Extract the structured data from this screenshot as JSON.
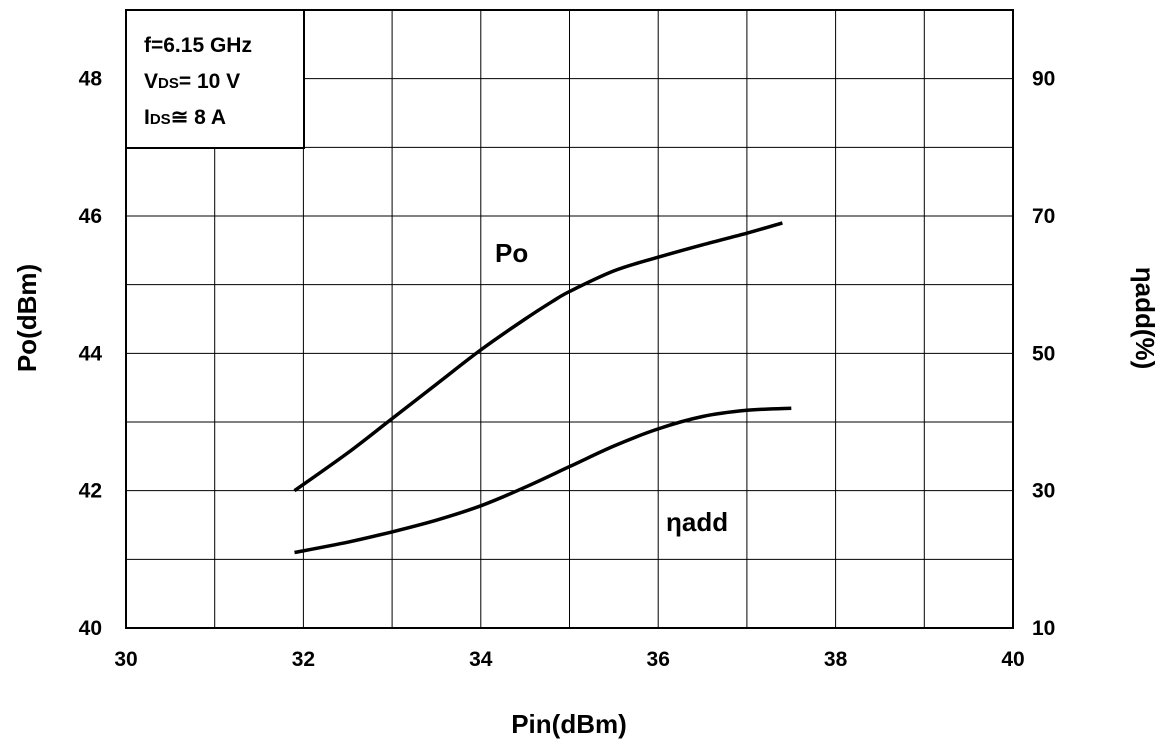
{
  "chart_data": {
    "type": "line",
    "xlabel": "Pin(dBm)",
    "ylabel_left": "Po(dBm)",
    "ylabel_right": "ηadd(%)",
    "xlim": [
      30,
      40
    ],
    "ylim_left": [
      40,
      49
    ],
    "ylim_right": [
      10,
      100
    ],
    "x_ticks": [
      30,
      32,
      34,
      36,
      38,
      40
    ],
    "y_left_ticks": [
      40,
      42,
      44,
      46,
      48
    ],
    "y_right_ticks": [
      10,
      30,
      50,
      70,
      90
    ],
    "grid": true,
    "conditions": {
      "line1_main": "f=6.15 GHz",
      "line2_sym": "V",
      "line2_sub": "DS",
      "line2_val": "= 10 V",
      "line3_sym": "I",
      "line3_sub": "DS",
      "line3_val": "≅ 8 A"
    },
    "series": [
      {
        "name": "Po",
        "axis": "left",
        "x": [
          31.9,
          32.5,
          33.0,
          33.5,
          34.0,
          34.5,
          34.8,
          35.0,
          35.5,
          36.0,
          36.5,
          37.0,
          37.4
        ],
        "values": [
          42.0,
          42.55,
          43.05,
          43.55,
          44.05,
          44.5,
          44.75,
          44.9,
          45.2,
          45.4,
          45.58,
          45.75,
          45.9
        ]
      },
      {
        "name": "ηadd",
        "axis": "right",
        "x": [
          31.9,
          32.5,
          33.0,
          33.5,
          34.0,
          34.5,
          35.0,
          35.5,
          36.0,
          36.5,
          37.0,
          37.5
        ],
        "values": [
          21.0,
          22.5,
          24.0,
          25.7,
          27.8,
          30.5,
          33.5,
          36.5,
          39.0,
          40.8,
          41.7,
          42.0
        ]
      }
    ]
  }
}
